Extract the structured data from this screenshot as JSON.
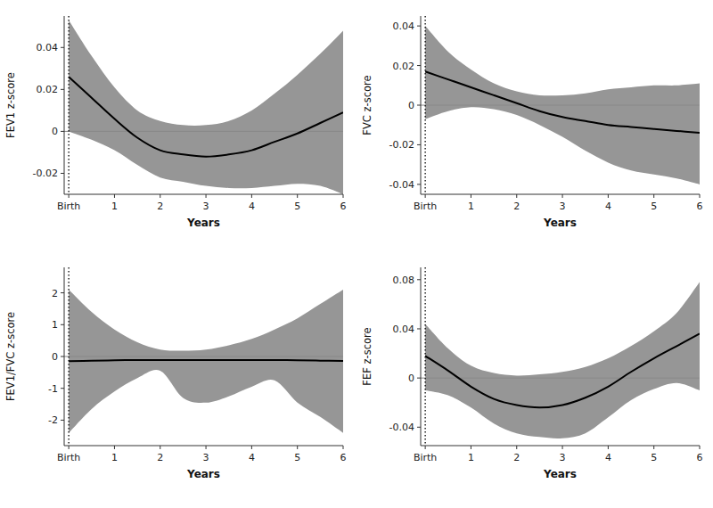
{
  "chart_data": [
    {
      "type": "line",
      "xlabel": "Years",
      "ylabel": "FEV1 z-score",
      "x": [
        0,
        0.5,
        1.0,
        1.5,
        2.0,
        2.5,
        3.0,
        3.5,
        4.0,
        4.5,
        5.0,
        5.5,
        6.0
      ],
      "values": [
        0.026,
        0.016,
        0.006,
        -0.003,
        -0.009,
        -0.011,
        -0.012,
        -0.011,
        -0.009,
        -0.005,
        -0.001,
        0.004,
        0.009
      ],
      "ci_upper": [
        0.053,
        0.036,
        0.021,
        0.01,
        0.005,
        0.003,
        0.003,
        0.005,
        0.01,
        0.018,
        0.027,
        0.037,
        0.048
      ],
      "ci_lower": [
        0.0,
        -0.004,
        -0.009,
        -0.016,
        -0.022,
        -0.024,
        -0.026,
        -0.027,
        -0.027,
        -0.026,
        -0.025,
        -0.026,
        -0.03
      ],
      "xlim": [
        -0.1,
        6
      ],
      "xticks": [
        {
          "value": 0,
          "label": "Birth"
        },
        1,
        2,
        3,
        4,
        5,
        6
      ],
      "ylim": [
        -0.03,
        0.055
      ],
      "yticks": [
        -0.02,
        0,
        0.02,
        0.04
      ],
      "color": "#000000",
      "band_color": "#969696",
      "hline": 0,
      "hline_color": "#888888",
      "vline": 0,
      "vline_color": "#000000",
      "line_style": "solid",
      "grid": false
    },
    {
      "type": "line",
      "xlabel": "Years",
      "ylabel": "FVC z-score",
      "x": [
        0,
        0.5,
        1.0,
        1.5,
        2.0,
        2.5,
        3.0,
        3.5,
        4.0,
        4.5,
        5.0,
        5.5,
        6.0
      ],
      "values": [
        0.017,
        0.013,
        0.009,
        0.005,
        0.001,
        -0.003,
        -0.006,
        -0.008,
        -0.01,
        -0.011,
        -0.012,
        -0.013,
        -0.014
      ],
      "ci_upper": [
        0.04,
        0.027,
        0.018,
        0.011,
        0.007,
        0.005,
        0.005,
        0.006,
        0.008,
        0.009,
        0.01,
        0.01,
        0.011
      ],
      "ci_lower": [
        -0.007,
        -0.003,
        -0.001,
        -0.002,
        -0.005,
        -0.01,
        -0.016,
        -0.023,
        -0.029,
        -0.033,
        -0.035,
        -0.037,
        -0.04
      ],
      "xlim": [
        -0.1,
        6
      ],
      "xticks": [
        {
          "value": 0,
          "label": "Birth"
        },
        1,
        2,
        3,
        4,
        5,
        6
      ],
      "ylim": [
        -0.045,
        0.045
      ],
      "yticks": [
        -0.04,
        -0.02,
        0,
        0.02,
        0.04
      ],
      "color": "#000000",
      "band_color": "#969696",
      "hline": 0,
      "hline_color": "#888888",
      "vline": 0,
      "vline_color": "#000000",
      "line_style": "solid",
      "grid": false
    },
    {
      "type": "line",
      "xlabel": "Years",
      "ylabel": "FEV1/FVC z-score",
      "x": [
        0,
        0.5,
        1.0,
        1.5,
        2.0,
        2.5,
        3.0,
        3.5,
        4.0,
        4.5,
        5.0,
        5.5,
        6.0
      ],
      "values": [
        -0.15,
        -0.13,
        -0.12,
        -0.11,
        -0.11,
        -0.11,
        -0.11,
        -0.11,
        -0.11,
        -0.11,
        -0.12,
        -0.13,
        -0.14
      ],
      "ci_upper": [
        2.1,
        1.4,
        0.85,
        0.45,
        0.22,
        0.18,
        0.22,
        0.35,
        0.55,
        0.85,
        1.2,
        1.65,
        2.1
      ],
      "ci_lower": [
        -2.4,
        -1.65,
        -1.1,
        -0.68,
        -0.45,
        -1.3,
        -1.45,
        -1.25,
        -0.95,
        -0.75,
        -1.45,
        -1.9,
        -2.4
      ],
      "xlim": [
        -0.1,
        6
      ],
      "xticks": [
        {
          "value": 0,
          "label": "Birth"
        },
        1,
        2,
        3,
        4,
        5,
        6
      ],
      "ylim": [
        -2.8,
        2.8
      ],
      "yticks": [
        -2,
        -1,
        0,
        1,
        2
      ],
      "color": "#000000",
      "band_color": "#969696",
      "hline": 0,
      "hline_color": "#888888",
      "vline": 0,
      "vline_color": "#000000",
      "line_style": "solid",
      "grid": false
    },
    {
      "type": "line",
      "xlabel": "Years",
      "ylabel": "FEF z-score",
      "x": [
        0,
        0.5,
        1.0,
        1.5,
        2.0,
        2.5,
        3.0,
        3.5,
        4.0,
        4.5,
        5.0,
        5.5,
        6.0
      ],
      "values": [
        0.018,
        0.006,
        -0.007,
        -0.017,
        -0.022,
        -0.024,
        -0.022,
        -0.016,
        -0.007,
        0.005,
        0.016,
        0.026,
        0.036
      ],
      "ci_upper": [
        0.044,
        0.024,
        0.01,
        0.004,
        0.002,
        0.003,
        0.005,
        0.009,
        0.016,
        0.026,
        0.038,
        0.053,
        0.078
      ],
      "ci_lower": [
        -0.01,
        -0.014,
        -0.024,
        -0.037,
        -0.045,
        -0.048,
        -0.049,
        -0.045,
        -0.032,
        -0.018,
        -0.009,
        -0.004,
        -0.01
      ],
      "xlim": [
        -0.1,
        6
      ],
      "xticks": [
        {
          "value": 0,
          "label": "Birth"
        },
        1,
        2,
        3,
        4,
        5,
        6
      ],
      "ylim": [
        -0.055,
        0.09
      ],
      "yticks": [
        -0.04,
        0,
        0.04,
        0.08
      ],
      "color": "#000000",
      "band_color": "#969696",
      "hline": 0,
      "hline_color": "#888888",
      "vline": 0,
      "vline_color": "#000000",
      "line_style": "solid",
      "grid": false
    }
  ]
}
